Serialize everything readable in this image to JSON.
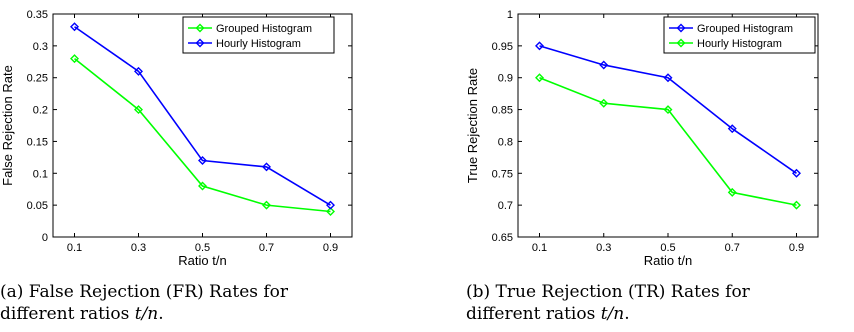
{
  "chart_data": [
    {
      "type": "line",
      "categories": [
        "0.1",
        "0.3",
        "0.5",
        "0.7",
        "0.9"
      ],
      "xlabel": "Ratio t/n",
      "ylabel": "False Rejection Rate",
      "ylim": [
        0,
        0.35
      ],
      "yticks": [
        "0",
        "0.05",
        "0.1",
        "0.15",
        "0.2",
        "0.25",
        "0.3",
        "0.35"
      ],
      "grid": false,
      "legend_position": "top-right",
      "series": [
        {
          "name": "Grouped Histogram",
          "color": "#00ff00",
          "values": [
            0.28,
            0.2,
            0.08,
            0.05,
            0.04
          ]
        },
        {
          "name": "Hourly Histogram",
          "color": "#0000ff",
          "values": [
            0.33,
            0.26,
            0.12,
            0.11,
            0.05
          ]
        }
      ],
      "caption": {
        "line1": "(a) False Rejection (FR) Rates for",
        "line2_text": "different ratios ",
        "line2_math": "t/n",
        "line2_end": "."
      }
    },
    {
      "type": "line",
      "categories": [
        "0.1",
        "0.3",
        "0.5",
        "0.7",
        "0.9"
      ],
      "xlabel": "Ratio t/n",
      "ylabel": "True Rejection Rate",
      "ylim": [
        0.65,
        1
      ],
      "yticks": [
        "0.65",
        "0.7",
        "0.75",
        "0.8",
        "0.85",
        "0.9",
        "0.95",
        "1"
      ],
      "grid": false,
      "legend_position": "top-right",
      "series": [
        {
          "name": "Grouped Histogram",
          "color": "#0000ff",
          "values": [
            0.95,
            0.92,
            0.9,
            0.82,
            0.75
          ]
        },
        {
          "name": "Hourly Histogram",
          "color": "#00ff00",
          "values": [
            0.9,
            0.86,
            0.85,
            0.72,
            0.7
          ]
        }
      ],
      "caption": {
        "line1": "(b) True Rejection (TR) Rates for",
        "line2_text": "different ratios ",
        "line2_math": "t/n",
        "line2_end": "."
      }
    }
  ]
}
